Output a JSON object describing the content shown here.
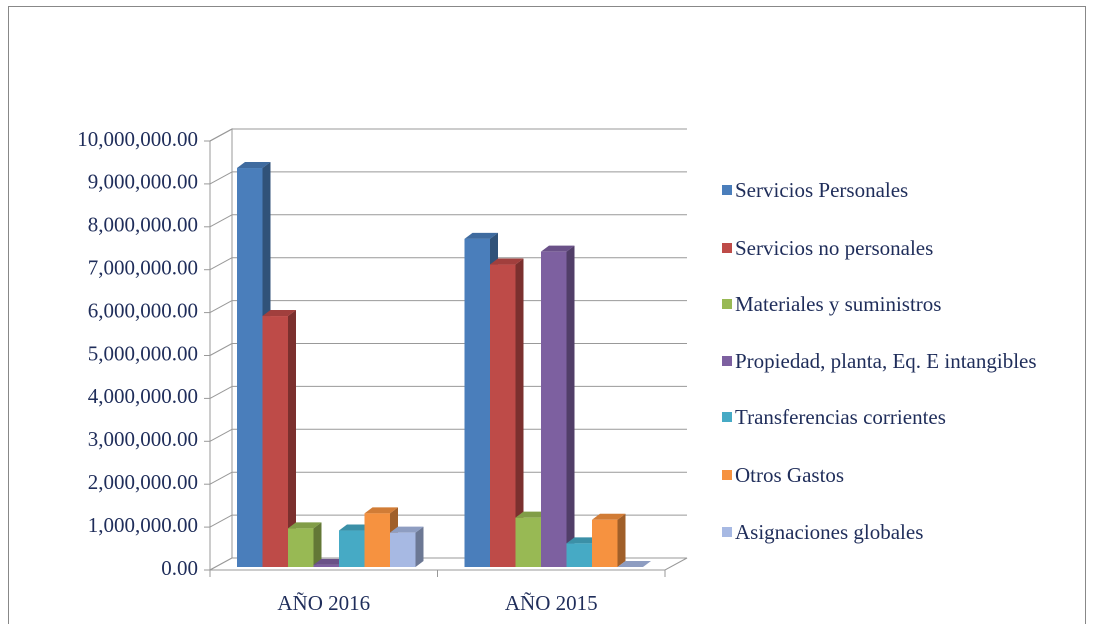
{
  "chart_data": {
    "type": "bar",
    "categories": [
      "AÑO 2016",
      "AÑO 2015"
    ],
    "series": [
      {
        "name": "Servicios Personales",
        "color": "#4a7ebb",
        "values": [
          9300000,
          7650000
        ]
      },
      {
        "name": "Servicios no personales",
        "color": "#be4b48",
        "values": [
          5850000,
          7050000
        ]
      },
      {
        "name": "Materiales y suministros",
        "color": "#98b954",
        "values": [
          900000,
          1150000
        ]
      },
      {
        "name": "Propiedad, planta, Eq. E intangibles",
        "color": "#7d60a0",
        "values": [
          50000,
          7350000
        ]
      },
      {
        "name": "Transferencias corrientes",
        "color": "#46aac5",
        "values": [
          850000,
          550000
        ]
      },
      {
        "name": "Otros Gastos",
        "color": "#f69240",
        "values": [
          1250000,
          1100000
        ]
      },
      {
        "name": "Asignaciones globales",
        "color": "#a7b9e3",
        "values": [
          800000,
          0
        ]
      }
    ],
    "ylim": [
      0,
      10000000
    ],
    "yticks": [
      {
        "value": 0,
        "label": "0.00"
      },
      {
        "value": 1000000,
        "label": "1,000,000.00"
      },
      {
        "value": 2000000,
        "label": "2,000,000.00"
      },
      {
        "value": 3000000,
        "label": "3,000,000.00"
      },
      {
        "value": 4000000,
        "label": "4,000,000.00"
      },
      {
        "value": 5000000,
        "label": "5,000,000.00"
      },
      {
        "value": 6000000,
        "label": "6,000,000.00"
      },
      {
        "value": 7000000,
        "label": "7,000,000.00"
      },
      {
        "value": 8000000,
        "label": "8,000,000.00"
      },
      {
        "value": 9000000,
        "label": "9,000,000.00"
      },
      {
        "value": 10000000,
        "label": "10,000,000.00"
      }
    ],
    "grid": true,
    "legend": "right"
  }
}
